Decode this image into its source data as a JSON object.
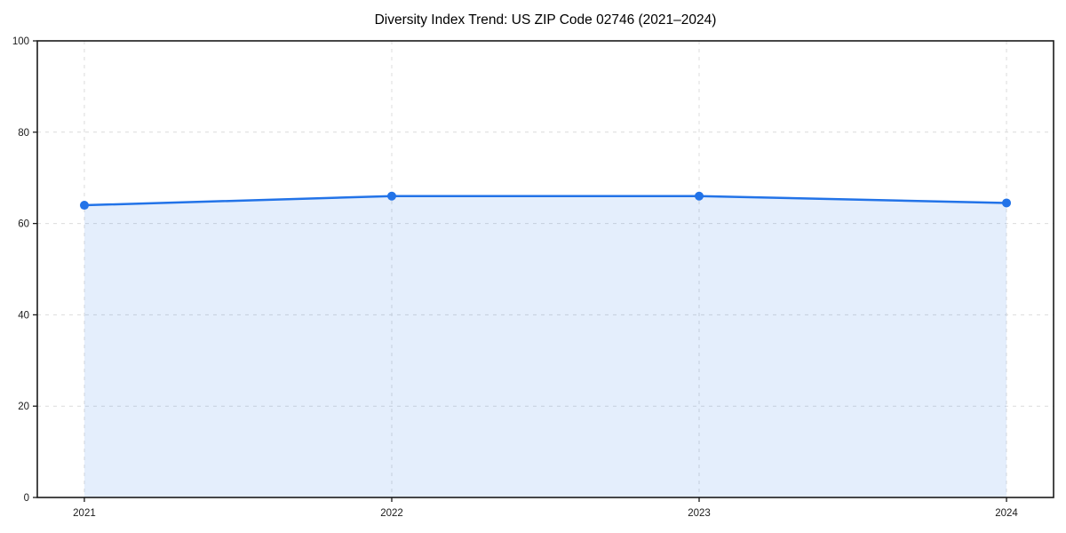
{
  "chart_data": {
    "type": "line",
    "title": "Diversity Index Trend: US ZIP Code 02746 (2021–2024)",
    "categories": [
      "2021",
      "2022",
      "2023",
      "2024"
    ],
    "values": [
      64,
      66,
      66,
      64.5
    ],
    "xlabel": "",
    "ylabel": "",
    "ylim": [
      0,
      100
    ],
    "yticks": [
      0,
      20,
      40,
      60,
      80,
      100
    ],
    "grid": true,
    "grid_style": "dashed",
    "legend": "none",
    "colors": {
      "line": "#2273e8",
      "marker": "#2273e8",
      "area_fill": "#2273e8",
      "area_fill_opacity": 0.12,
      "gridline": "#dcdcdc",
      "axis_frame": "#1a1a1a",
      "tick_label": "#1a1a1a",
      "title": "#000000",
      "background": "#ffffff"
    }
  }
}
